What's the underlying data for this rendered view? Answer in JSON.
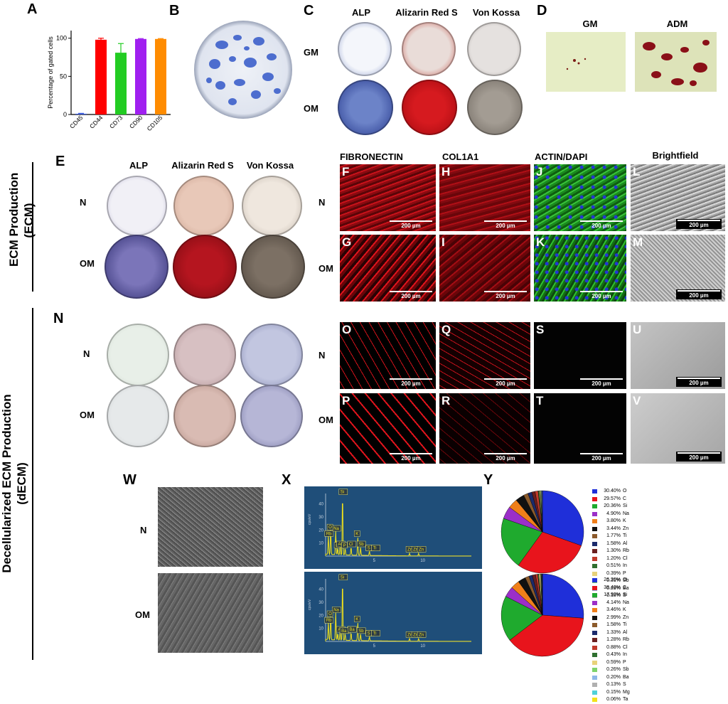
{
  "panel_labels": {
    "A": "A",
    "B": "B",
    "C": "C",
    "D": "D",
    "E": "E",
    "F": "F",
    "G": "G",
    "H": "H",
    "I": "I",
    "J": "J",
    "K": "K",
    "L": "L",
    "M": "M",
    "N": "N",
    "O": "O",
    "P": "P",
    "Q": "Q",
    "R": "R",
    "S": "S",
    "T": "T",
    "U": "U",
    "V": "V",
    "W": "W",
    "X": "X",
    "Y": "Y"
  },
  "section_titles": {
    "ecm_line1": "ECM Production",
    "ecm_line2": "(ECM)",
    "decm_line1": "Decellularized  ECM Production",
    "decm_line2": "(dECM)"
  },
  "stain_headers": {
    "alp": "ALP",
    "alizarin": "Alizarin Red S",
    "von_kossa": "Von Kossa"
  },
  "d_headers": {
    "gm": "GM",
    "adm": "ADM"
  },
  "row_labels": {
    "gm": "GM",
    "om": "OM",
    "n": "N"
  },
  "if_headers": {
    "fibronectin": "FIBRONECTIN",
    "col1a1": "COL1A1",
    "actin_dapi": "ACTIN/DAPI",
    "brightfield": "Brightfield"
  },
  "scale_bar": "200 µm",
  "colors": {
    "alp_blue": "#3b55a8",
    "alizarin_red": "#c4121a",
    "fluor_red": "#e0141c",
    "actin_green": "#2fbf2f",
    "dapi_blue": "#2433d6",
    "eds_bg": "#1f4e79",
    "eds_peak": "#f2e21a"
  },
  "chart_data": [
    {
      "type": "bar",
      "panel": "A",
      "categories": [
        "CD45",
        "CD44",
        "CD73",
        "CD90",
        "CD105"
      ],
      "values": [
        1,
        98,
        81,
        99,
        99
      ],
      "errors": [
        0.5,
        2,
        12,
        0.5,
        0.5
      ],
      "colors": [
        "#3b5bdb",
        "#ff0000",
        "#22cc22",
        "#a020f0",
        "#ff8c00"
      ],
      "ylabel": "Percentage of gated cells",
      "xlabel": "",
      "ylim": [
        0,
        110
      ],
      "yticks": [
        0,
        50,
        100
      ]
    },
    {
      "type": "line",
      "panel": "X",
      "subpanel": "N",
      "ylabel": "cps/eV",
      "yticks": [
        10,
        20,
        30,
        40
      ],
      "xticks": [
        5,
        10
      ],
      "xlim": [
        0,
        15
      ],
      "ylim": [
        0,
        48
      ],
      "peaks": [
        {
          "x": 0.28,
          "y": 14,
          "label": "C"
        },
        {
          "x": 0.52,
          "y": 19,
          "label": "O"
        },
        {
          "x": 1.04,
          "y": 18,
          "label": "Na"
        },
        {
          "x": 1.25,
          "y": 5,
          "label": "Mg"
        },
        {
          "x": 1.49,
          "y": 6,
          "label": "Al"
        },
        {
          "x": 1.74,
          "y": 46,
          "label": "Si"
        },
        {
          "x": 2.01,
          "y": 5,
          "label": "P"
        },
        {
          "x": 2.62,
          "y": 6,
          "label": "Cl"
        },
        {
          "x": 3.31,
          "y": 14,
          "label": "K"
        },
        {
          "x": 3.6,
          "y": 6,
          "label": "Sb"
        },
        {
          "x": 4.51,
          "y": 3,
          "label": "Ti"
        },
        {
          "x": 8.64,
          "y": 2,
          "label": "Zn"
        },
        {
          "x": 9.57,
          "y": 2,
          "label": "Zn"
        }
      ],
      "peak_labels": [
        "Si",
        "Na",
        "O",
        "C",
        "Zn",
        "Ti",
        "Mg",
        "Al",
        "P",
        "Cl",
        "S",
        "K",
        "In",
        "Rb",
        "Sb",
        "Ti",
        "Zn",
        "Zn"
      ]
    },
    {
      "type": "line",
      "panel": "X",
      "subpanel": "OM",
      "ylabel": "cps/eV",
      "yticks": [
        10,
        20,
        30,
        40
      ],
      "xticks": [
        5,
        10
      ],
      "xlim": [
        0,
        15
      ],
      "ylim": [
        0,
        48
      ],
      "peaks": [
        {
          "x": 0.28,
          "y": 13,
          "label": "C"
        },
        {
          "x": 0.52,
          "y": 18,
          "label": "O"
        },
        {
          "x": 1.04,
          "y": 21,
          "label": "Na"
        },
        {
          "x": 1.25,
          "y": 5,
          "label": "Mg"
        },
        {
          "x": 1.49,
          "y": 6,
          "label": "Al"
        },
        {
          "x": 1.74,
          "y": 46,
          "label": "Si"
        },
        {
          "x": 2.01,
          "y": 5,
          "label": "P"
        },
        {
          "x": 2.62,
          "y": 6,
          "label": "Cl"
        },
        {
          "x": 3.31,
          "y": 14,
          "label": "K"
        },
        {
          "x": 3.6,
          "y": 5,
          "label": "Sb"
        },
        {
          "x": 4.51,
          "y": 3,
          "label": "Ti"
        },
        {
          "x": 8.64,
          "y": 2,
          "label": "Zn"
        },
        {
          "x": 9.57,
          "y": 2,
          "label": "Zn"
        }
      ],
      "peak_labels": [
        "Si",
        "Na",
        "O",
        "C",
        "Zn",
        "Ti",
        "Ba",
        "Al",
        "P",
        "Cl",
        "S",
        "K",
        "In",
        "Rb",
        "Sb",
        "Ti",
        "Ba",
        "Ba",
        "Zn",
        "Zn"
      ]
    },
    {
      "type": "pie",
      "panel": "Y",
      "subpanel": "N",
      "slices": [
        {
          "label": "O",
          "value": 30.4,
          "text": "30.40%",
          "color": "#1f2fd9"
        },
        {
          "label": "C",
          "value": 29.57,
          "text": "29.57%",
          "color": "#e8141c"
        },
        {
          "label": "Si",
          "value": 20.36,
          "text": "20.36%",
          "color": "#1faa2e"
        },
        {
          "label": "Na",
          "value": 4.9,
          "text": "4.90%",
          "color": "#9b2fc8"
        },
        {
          "label": "K",
          "value": 3.8,
          "text": "3.80%",
          "color": "#f07f1a"
        },
        {
          "label": "Zn",
          "value": 3.44,
          "text": "3.44%",
          "color": "#111111"
        },
        {
          "label": "Ti",
          "value": 1.77,
          "text": "1.77%",
          "color": "#8b5a2b"
        },
        {
          "label": "Al",
          "value": 1.58,
          "text": "1.58%",
          "color": "#1a2a6c"
        },
        {
          "label": "Rb",
          "value": 1.3,
          "text": "1.30%",
          "color": "#6a1f1f"
        },
        {
          "label": "Cl",
          "value": 1.2,
          "text": "1.20%",
          "color": "#c0392b"
        },
        {
          "label": "In",
          "value": 0.51,
          "text": "0.51%",
          "color": "#2f6f2f"
        },
        {
          "label": "P",
          "value": 0.39,
          "text": "0.39%",
          "color": "#e8d27a"
        },
        {
          "label": "Sb",
          "value": 0.31,
          "text": "0.31%",
          "color": "#7fd36b"
        },
        {
          "label": "Ba",
          "value": 0.29,
          "text": "0.29%",
          "color": "#8fb8e8"
        },
        {
          "label": "S",
          "value": 0.18,
          "text": "0.18%",
          "color": "#b0b0b0"
        }
      ]
    },
    {
      "type": "pie",
      "panel": "Y",
      "subpanel": "OM",
      "slices": [
        {
          "label": "O",
          "value": 26.2,
          "text": "26.20%",
          "color": "#1f2fd9"
        },
        {
          "label": "C",
          "value": 38.42,
          "text": "38.42%",
          "color": "#e8141c"
        },
        {
          "label": "Si",
          "value": 17.92,
          "text": "17.92%",
          "color": "#1faa2e"
        },
        {
          "label": "Na",
          "value": 4.14,
          "text": "4.14%",
          "color": "#9b2fc8"
        },
        {
          "label": "K",
          "value": 3.46,
          "text": "3.46%",
          "color": "#f07f1a"
        },
        {
          "label": "Zn",
          "value": 2.99,
          "text": "2.99%",
          "color": "#111111"
        },
        {
          "label": "Ti",
          "value": 1.58,
          "text": "1.58%",
          "color": "#8b5a2b"
        },
        {
          "label": "Al",
          "value": 1.33,
          "text": "1.33%",
          "color": "#1a2a6c"
        },
        {
          "label": "Rb",
          "value": 1.28,
          "text": "1.28%",
          "color": "#6a1f1f"
        },
        {
          "label": "Cl",
          "value": 0.88,
          "text": "0.88%",
          "color": "#c0392b"
        },
        {
          "label": "In",
          "value": 0.43,
          "text": "0.43%",
          "color": "#2f6f2f"
        },
        {
          "label": "P",
          "value": 0.59,
          "text": "0.59%",
          "color": "#e8d27a"
        },
        {
          "label": "Sb",
          "value": 0.26,
          "text": "0.26%",
          "color": "#7fd36b"
        },
        {
          "label": "Ba",
          "value": 0.2,
          "text": "0.20%",
          "color": "#8fb8e8"
        },
        {
          "label": "S",
          "value": 0.13,
          "text": "0.13%",
          "color": "#b0b0b0"
        },
        {
          "label": "Mg",
          "value": 0.15,
          "text": "0.15%",
          "color": "#4fd1d9"
        },
        {
          "label": "Ta",
          "value": 0.06,
          "text": "0.06%",
          "color": "#f2e21a"
        }
      ]
    }
  ]
}
